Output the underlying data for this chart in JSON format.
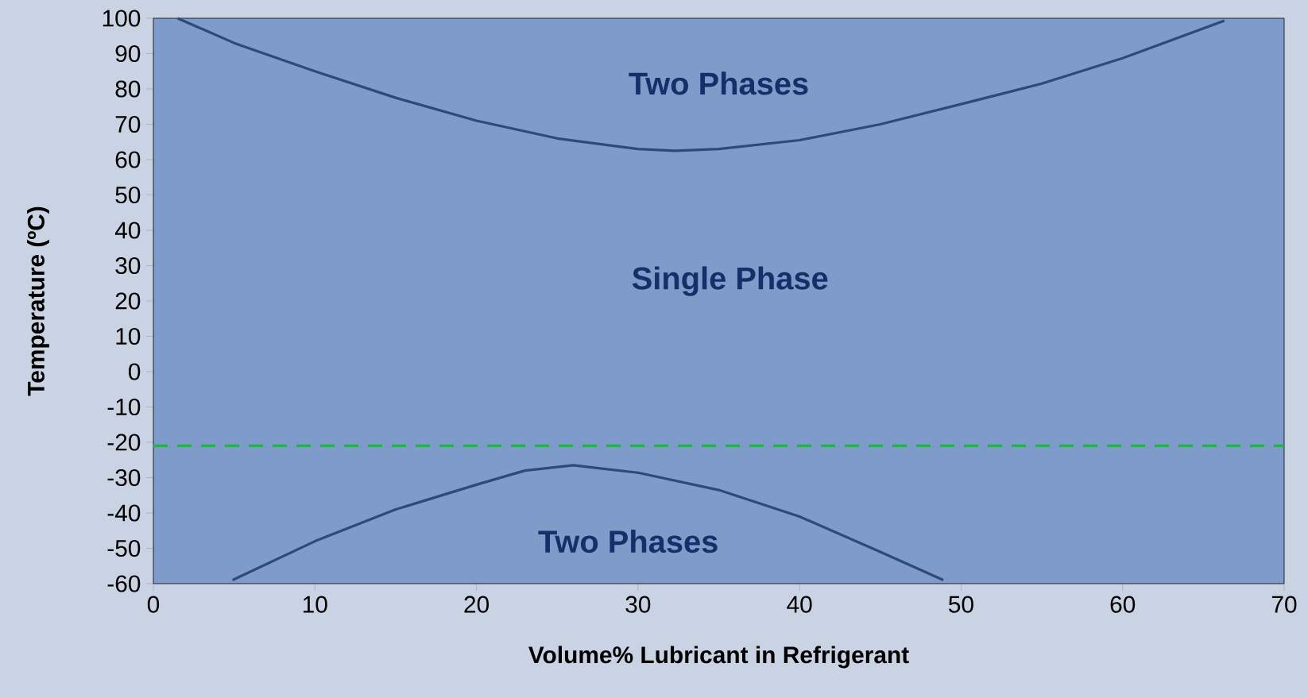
{
  "chart_data": {
    "type": "line",
    "xlabel": "Volume% Lubricant  in Refrigerant",
    "ylabel": "Temperature (ºC)",
    "annotations": [
      "Two Phases",
      "Single Phase",
      "Two Phases"
    ],
    "series": [
      {
        "color": "#2e4a78",
        "x": [
          1.5,
          5,
          10,
          15,
          20,
          25,
          30,
          32.3,
          35,
          40,
          45,
          50,
          55,
          60,
          66.3
        ],
        "values": [
          100,
          93,
          85,
          77.5,
          71,
          66,
          63,
          62.5,
          63,
          65.5,
          70,
          75.7,
          81.5,
          88.7,
          99.3
        ]
      },
      {
        "color": "#2e4a78",
        "x": [
          4.9,
          10,
          15,
          20,
          23,
          26,
          30,
          35,
          40,
          45,
          48.9
        ],
        "values": [
          -59,
          -48,
          -39,
          -32,
          -28,
          -26.5,
          -28.6,
          -33.5,
          -41,
          -51,
          -59
        ]
      }
    ],
    "xlim": [
      0,
      70
    ],
    "ylim": [
      -60,
      100
    ],
    "xticks": [
      0,
      10,
      20,
      30,
      40,
      50,
      60,
      70
    ],
    "yticks": [
      -60,
      -50,
      -40,
      -30,
      -20,
      -10,
      0,
      10,
      20,
      30,
      40,
      50,
      60,
      70,
      80,
      90,
      100
    ],
    "ref_lines": [
      {
        "axis": "y",
        "value": -21,
        "color": "#22b14c",
        "line_style": "dashed"
      }
    ],
    "grid": false
  }
}
